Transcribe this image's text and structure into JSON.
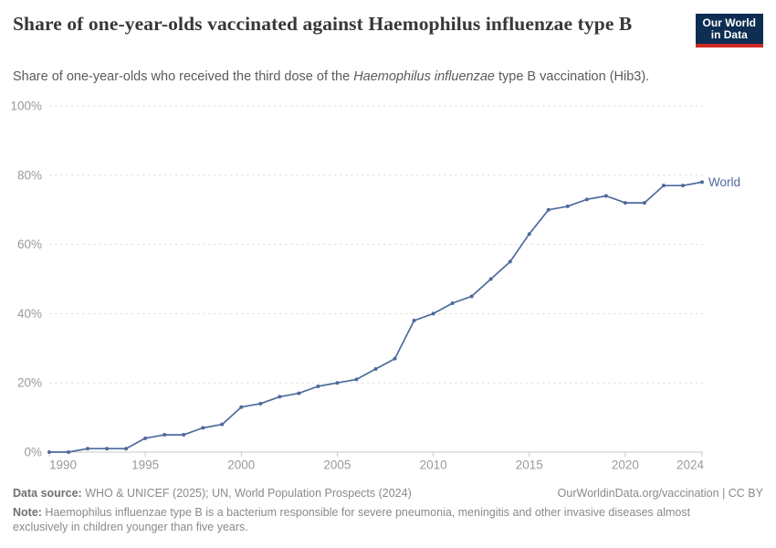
{
  "header": {
    "title": "Share of one-year-olds vaccinated against Haemophilus influenzae type B",
    "logo": {
      "line1": "Our World",
      "line2": "in Data"
    }
  },
  "subtitle": {
    "prefix": "Share of one-year-olds who received the third dose of the ",
    "italic": "Haemophilus influenzae",
    "suffix": " type B vaccination (Hib3)."
  },
  "chart_data": {
    "type": "line",
    "title": "Share of one-year-olds vaccinated against Haemophilus influenzae type B",
    "xlabel": "",
    "ylabel": "",
    "xlim": [
      1990,
      2024
    ],
    "ylim": [
      0,
      100
    ],
    "grid": "horizontal-dashed",
    "legend_position": "end-of-line",
    "x_ticks": [
      1990,
      1995,
      2000,
      2005,
      2010,
      2015,
      2020,
      2024
    ],
    "y_ticks": [
      0,
      20,
      40,
      60,
      80,
      100
    ],
    "y_tick_suffix": "%",
    "x": [
      1990,
      1991,
      1992,
      1993,
      1994,
      1995,
      1996,
      1997,
      1998,
      1999,
      2000,
      2001,
      2002,
      2003,
      2004,
      2005,
      2006,
      2007,
      2008,
      2009,
      2010,
      2011,
      2012,
      2013,
      2014,
      2015,
      2016,
      2017,
      2018,
      2019,
      2020,
      2021,
      2022,
      2023,
      2024
    ],
    "series": [
      {
        "name": "World",
        "color": "#4c6a9c",
        "values": [
          0,
          0,
          1,
          1,
          1,
          4,
          5,
          5,
          7,
          8,
          13,
          14,
          16,
          17,
          19,
          20,
          21,
          24,
          27,
          38,
          40,
          43,
          45,
          50,
          55,
          63,
          70,
          71,
          73,
          74,
          72,
          72,
          77,
          77,
          78
        ]
      }
    ]
  },
  "footer": {
    "datasource_label": "Data source:",
    "datasource_text": " WHO & UNICEF (2025); UN, World Population Prospects (2024)",
    "rights": "OurWorldinData.org/vaccination | CC BY",
    "note_label": "Note:",
    "note_text": " Haemophilus influenzae type B is a bacterium responsible for severe pneumonia, meningitis and other invasive diseases almost exclusively in children younger than five years."
  },
  "colors": {
    "line": "#4c6a9c",
    "grid": "#dedede",
    "axis": "#c9c9c9",
    "tick_label": "#9a9a9a",
    "logo_bg": "#0d2e52",
    "logo_red": "#cf2722"
  }
}
